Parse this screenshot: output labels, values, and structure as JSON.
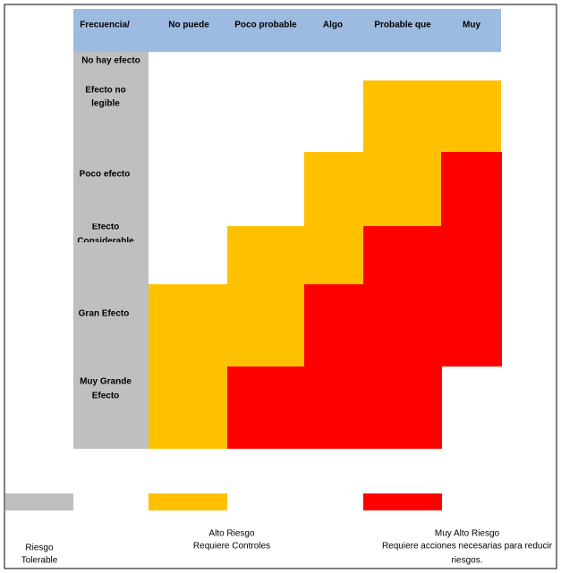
{
  "header": {
    "columns": [
      "Frecuencia/",
      "No puede",
      "Poco probable",
      "Algo",
      "Probable que",
      "Muy"
    ]
  },
  "rows": [
    {
      "label": [
        "No hay efecto"
      ]
    },
    {
      "label": [
        "Efecto no",
        "legible"
      ]
    },
    {
      "label": [
        "Poco efecto"
      ]
    },
    {
      "label": [
        "Efecto",
        "Considerable"
      ]
    },
    {
      "label": [
        "Gran Efecto"
      ]
    },
    {
      "label": [
        "Muy Grande",
        "Efecto"
      ]
    }
  ],
  "legend": [
    {
      "lines": [
        "Riesgo",
        "Tolerable"
      ]
    },
    {
      "lines": [
        "Alto Riesgo",
        "Requiere Controles"
      ]
    },
    {
      "lines": [
        "Muy Alto Riesgo",
        "Requiere acciones necesarias para reducir",
        "riesgos."
      ]
    }
  ]
}
